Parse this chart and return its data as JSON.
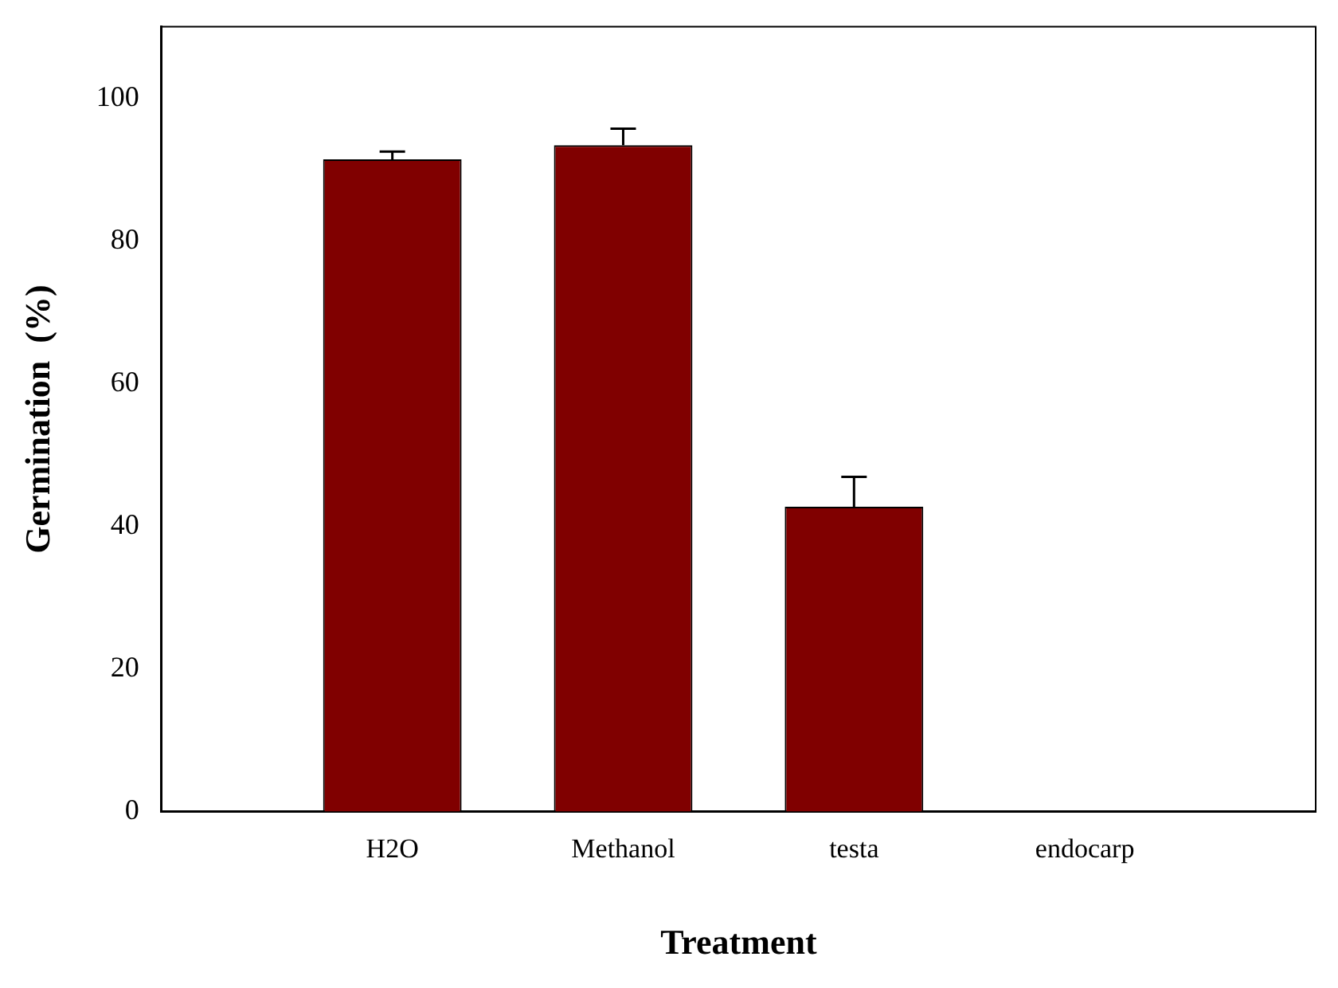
{
  "chart_data": {
    "type": "bar",
    "xlabel": "Treatment",
    "ylabel": "Germination  (%)",
    "categories": [
      "H2O",
      "Methanol",
      "testa",
      "endocarp"
    ],
    "values": [
      91.4,
      93.4,
      42.7,
      0
    ],
    "errors": [
      1.1,
      2.3,
      4.2,
      null
    ],
    "color": "#800000",
    "ylim": [
      0,
      110
    ],
    "yticks": [
      0,
      20,
      40,
      60,
      80,
      100
    ],
    "grid": false,
    "legend": false
  }
}
